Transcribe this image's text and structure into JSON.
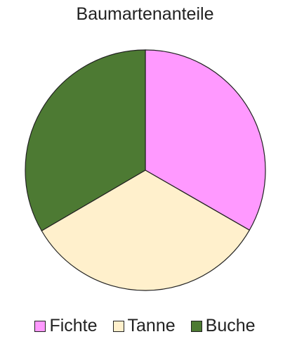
{
  "chart_data": {
    "type": "pie",
    "title": "Baumartenanteile",
    "categories": [
      "Fichte",
      "Tanne",
      "Buche"
    ],
    "values": [
      33.3,
      33.3,
      33.4
    ],
    "colors": [
      "#ff99ff",
      "#fff0cc",
      "#4d7a33"
    ],
    "legend_position": "bottom",
    "start_angle_deg": 0
  }
}
